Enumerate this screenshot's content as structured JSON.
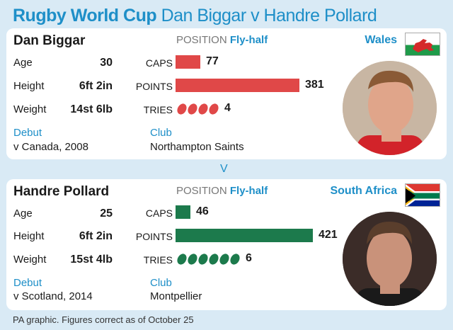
{
  "title": {
    "part1": "Rugby World Cup",
    "part2": "Dan Biggar v Handre Pollard"
  },
  "labels": {
    "position": "POSITION",
    "age": "Age",
    "height": "Height",
    "weight": "Weight",
    "caps": "CAPS",
    "points": "POINTS",
    "tries": "TRIES",
    "debut": "Debut",
    "club": "Club"
  },
  "versus": "V",
  "players": [
    {
      "name": "Dan Biggar",
      "position": "Fly-half",
      "country": "Wales",
      "age": "30",
      "height": "6ft 2in",
      "weight": "14st 6lb",
      "caps": 77,
      "points": 381,
      "tries": 4,
      "caps_text": "77",
      "points_text": "381",
      "tries_text": "4",
      "debut": "v Canada, 2008",
      "club": "Northampton Saints",
      "color": "#e04848"
    },
    {
      "name": "Handre Pollard",
      "position": "Fly-half",
      "country": "South Africa",
      "age": "25",
      "height": "6ft 2in",
      "weight": "15st 4lb",
      "caps": 46,
      "points": 421,
      "tries": 6,
      "caps_text": "46",
      "points_text": "421",
      "tries_text": "6",
      "debut": "v Scotland, 2014",
      "club": "Montpellier",
      "color": "#1c7a4c"
    }
  ],
  "footnote": "PA graphic. Figures correct as of October 25"
}
